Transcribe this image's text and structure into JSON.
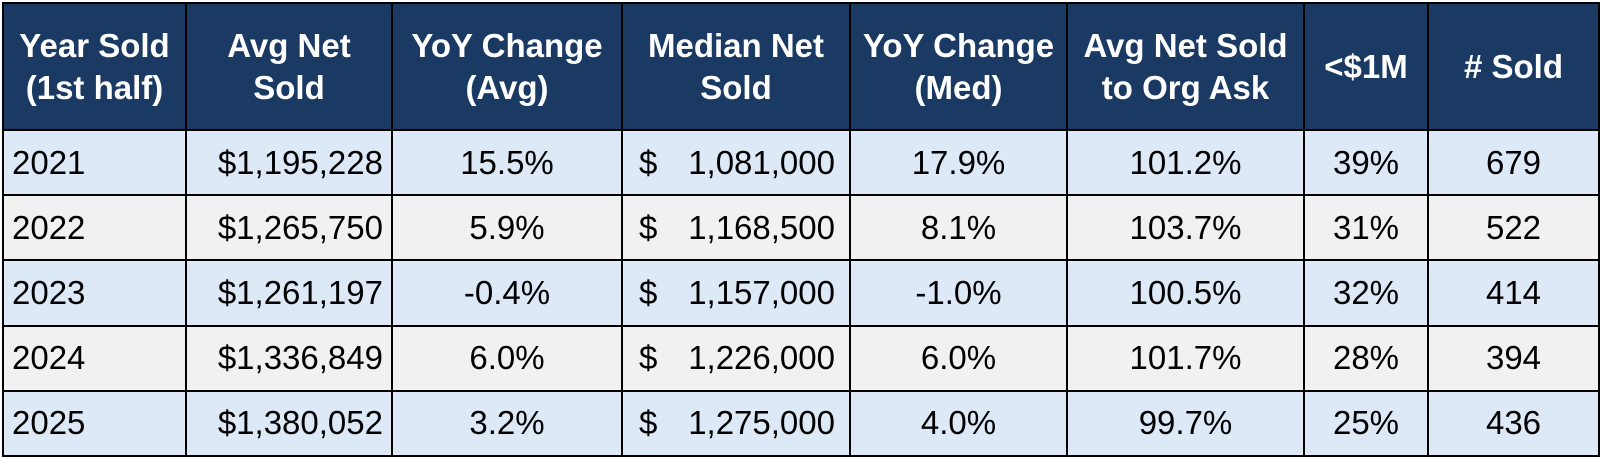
{
  "colors": {
    "header_bg": "#1a3a63",
    "header_text": "#ffffff",
    "row_band_a": "#dde9f6",
    "row_band_b": "#f1f1f1",
    "border": "#000000"
  },
  "table": {
    "headers": [
      [
        "Year Sold",
        "(1st half)"
      ],
      [
        "Avg Net",
        "Sold"
      ],
      [
        "YoY Change",
        "(Avg)"
      ],
      [
        "Median Net",
        "Sold"
      ],
      [
        "YoY Change",
        "(Med)"
      ],
      [
        "Avg Net Sold",
        "to Org Ask"
      ],
      [
        "<$1M"
      ],
      [
        "# Sold"
      ]
    ],
    "rows": [
      {
        "year": "2021",
        "avg_net_sold": "$1,195,228",
        "yoy_avg": "15.5%",
        "median_currency": "$",
        "median_net_sold": "1,081,000",
        "yoy_med": "17.9%",
        "avg_to_ask": "101.2%",
        "under_1m": "39%",
        "num_sold": "679"
      },
      {
        "year": "2022",
        "avg_net_sold": "$1,265,750",
        "yoy_avg": "5.9%",
        "median_currency": "$",
        "median_net_sold": "1,168,500",
        "yoy_med": "8.1%",
        "avg_to_ask": "103.7%",
        "under_1m": "31%",
        "num_sold": "522"
      },
      {
        "year": "2023",
        "avg_net_sold": "$1,261,197",
        "yoy_avg": "-0.4%",
        "median_currency": "$",
        "median_net_sold": "1,157,000",
        "yoy_med": "-1.0%",
        "avg_to_ask": "100.5%",
        "under_1m": "32%",
        "num_sold": "414"
      },
      {
        "year": "2024",
        "avg_net_sold": "$1,336,849",
        "yoy_avg": "6.0%",
        "median_currency": "$",
        "median_net_sold": "1,226,000",
        "yoy_med": "6.0%",
        "avg_to_ask": "101.7%",
        "under_1m": "28%",
        "num_sold": "394"
      },
      {
        "year": "2025",
        "avg_net_sold": "$1,380,052",
        "yoy_avg": "3.2%",
        "median_currency": "$",
        "median_net_sold": "1,275,000",
        "yoy_med": "4.0%",
        "avg_to_ask": "99.7%",
        "under_1m": "25%",
        "num_sold": "436"
      }
    ]
  }
}
